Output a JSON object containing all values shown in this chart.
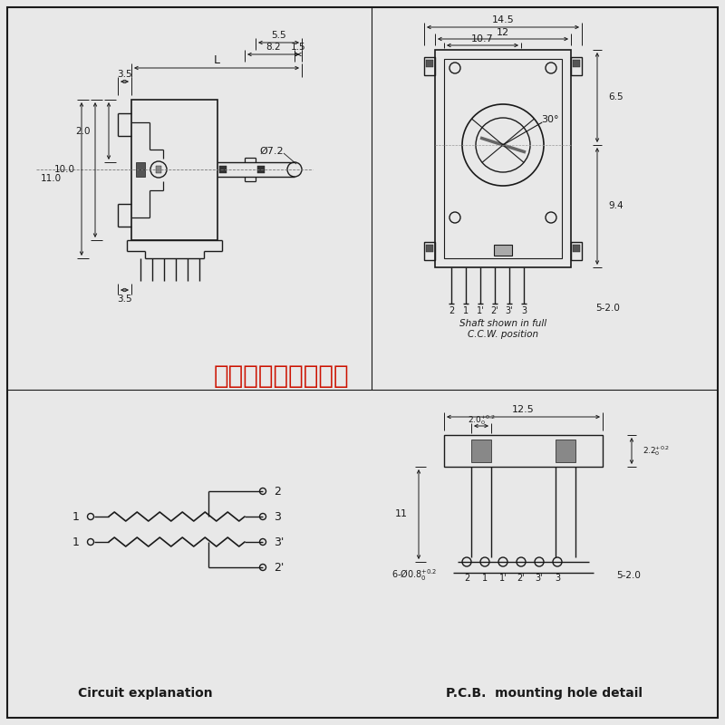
{
  "bg_color": "#e8e8e8",
  "line_color": "#1a1a1a",
  "red_color": "#cc1100",
  "watermark": "广州市永兴科技电子",
  "caption_left": "Circuit explanation",
  "caption_right": "P.C.B.  mounting hole detail",
  "shaft_text": "Shaft shown in full\nC.C.W. position"
}
